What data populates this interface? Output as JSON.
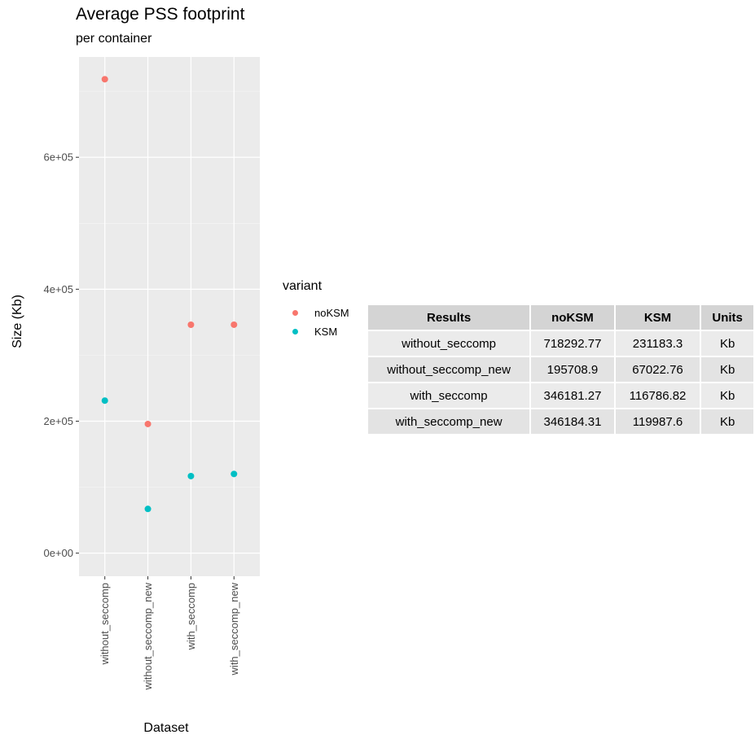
{
  "chart_data": {
    "type": "scatter",
    "title": "Average PSS footprint",
    "subtitle": "per container",
    "xlabel": "Dataset",
    "ylabel": "Size (Kb)",
    "categories": [
      "without_seccomp",
      "without_seccomp_new",
      "with_seccomp",
      "with_seccomp_new"
    ],
    "y_ticks": [
      0,
      200000,
      400000,
      600000
    ],
    "y_tick_labels": [
      "0e+00",
      "2e+05",
      "4e+05",
      "6e+05"
    ],
    "ylim": [
      -35000,
      752000
    ],
    "grid": true,
    "legend": {
      "title": "variant",
      "placement": "right"
    },
    "series": [
      {
        "name": "noKSM",
        "color": "#f8766d",
        "values": [
          718292.77,
          195708.9,
          346181.27,
          346184.31
        ]
      },
      {
        "name": "KSM",
        "color": "#00bfc4",
        "values": [
          231183.3,
          67022.76,
          116786.82,
          119987.6
        ]
      }
    ]
  },
  "table": {
    "headers": [
      "Results",
      "noKSM",
      "KSM",
      "Units"
    ],
    "rows": [
      [
        "without_seccomp",
        "718292.77",
        "231183.3",
        "Kb"
      ],
      [
        "without_seccomp_new",
        "195708.9",
        "67022.76",
        "Kb"
      ],
      [
        "with_seccomp",
        "346181.27",
        "116786.82",
        "Kb"
      ],
      [
        "with_seccomp_new",
        "346184.31",
        "119987.6",
        "Kb"
      ]
    ]
  }
}
